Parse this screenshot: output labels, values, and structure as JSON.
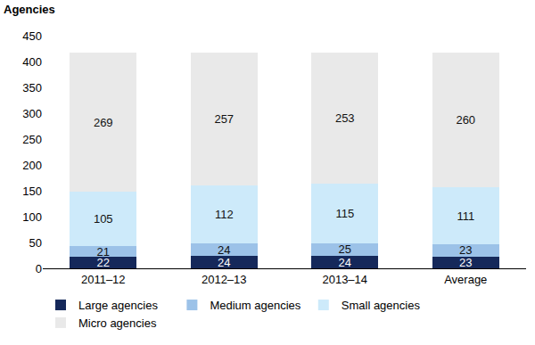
{
  "chart_data": {
    "type": "bar",
    "stacked": true,
    "data_labels": true,
    "grid": false,
    "legend": "bottom",
    "y_label": "Agencies",
    "categories": [
      "2011–12",
      "2012–13",
      "2013–14",
      "Average"
    ],
    "series": [
      {
        "name": "Large agencies",
        "color": "#15285a",
        "values": [
          22,
          24,
          24,
          23
        ]
      },
      {
        "name": "Medium agencies",
        "color": "#9cc2e8",
        "values": [
          21,
          24,
          25,
          23
        ]
      },
      {
        "name": "Small agencies",
        "color": "#cdeafa",
        "values": [
          105,
          112,
          115,
          111
        ]
      },
      {
        "name": "Micro agencies",
        "color": "#e9e9e9",
        "values": [
          269,
          257,
          253,
          260
        ]
      }
    ],
    "ylim": [
      0,
      450
    ],
    "yticks": [
      0,
      50,
      100,
      150,
      200,
      250,
      300,
      350,
      400,
      450
    ]
  }
}
